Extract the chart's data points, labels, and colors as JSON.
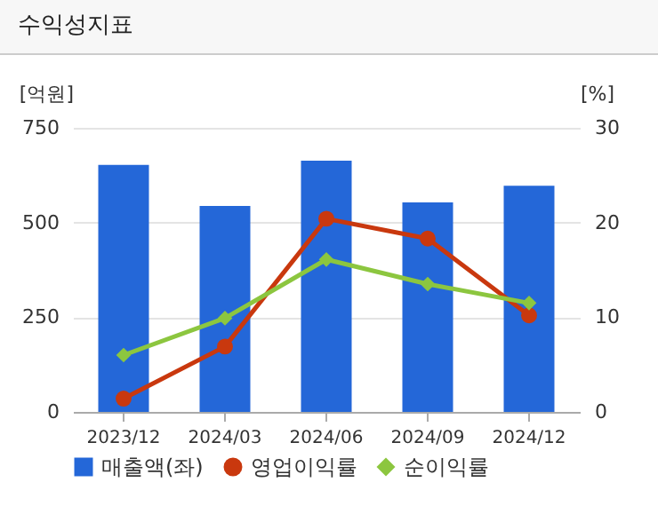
{
  "chart_data": {
    "type": "bar",
    "title": "수익성지표",
    "ylabel": "[억원]",
    "y2label": "[%]",
    "categories": [
      "2023/12",
      "2024/03",
      "2024/06",
      "2024/09",
      "2024/12"
    ],
    "series": [
      {
        "name": "매출액(좌)",
        "color": "#2467d8",
        "values": [
          652,
          544,
          663,
          553,
          597
        ]
      },
      {
        "name": "영업이익률",
        "type": "line",
        "axis": "y2",
        "marker": "circle",
        "color": "#c9380e",
        "values": [
          1.4,
          6.9,
          20.4,
          18.3,
          10.2
        ]
      },
      {
        "name": "순이익률",
        "type": "line",
        "axis": "y2",
        "marker": "diamond",
        "color": "#8cc63f",
        "values": [
          6.0,
          9.9,
          16.1,
          13.5,
          11.5
        ]
      }
    ],
    "ylim": [
      0,
      750
    ],
    "yticks": [
      0,
      250,
      500,
      750
    ],
    "y2lim": [
      0,
      30
    ],
    "y2ticks": [
      0,
      10,
      20,
      30
    ],
    "grid": "y",
    "legend": "bottom"
  }
}
